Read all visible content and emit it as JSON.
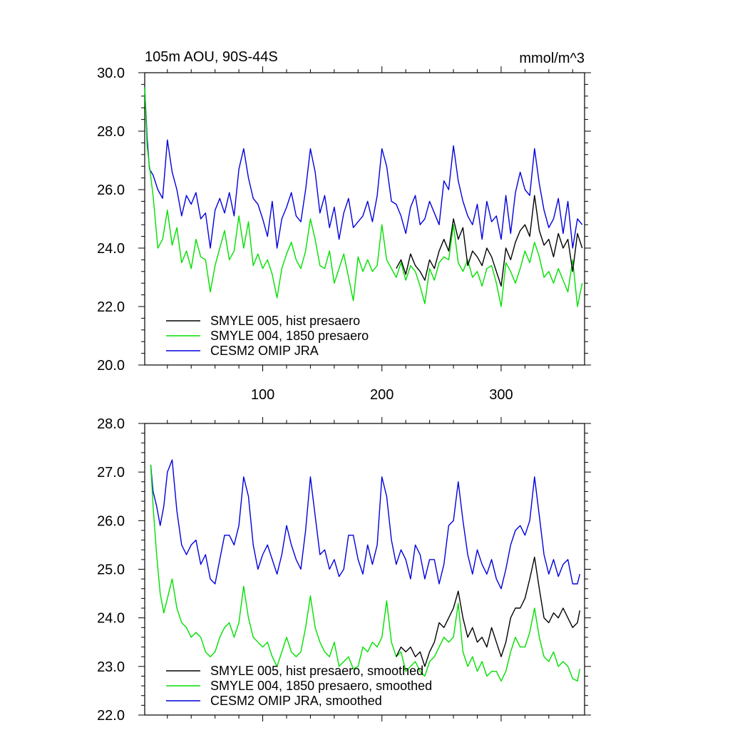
{
  "chart_data": [
    {
      "type": "line",
      "title_left": "105m AOU, 90S-44S",
      "title_right": "mmol/m^3",
      "xlabel": "",
      "ylabel": "",
      "xlim": [
        1,
        370
      ],
      "ylim": [
        20,
        30
      ],
      "x_ticks": [
        100,
        200,
        300
      ],
      "y_ticks": [
        "20.0",
        "22.0",
        "24.0",
        "26.0",
        "28.0",
        "30.0"
      ],
      "legend_position": "bottom-left",
      "legend": [
        {
          "label": "SMYLE 005, hist presaero",
          "color": "#000000"
        },
        {
          "label": "SMYLE 004, 1850 presaero",
          "color": "#00e000"
        },
        {
          "label": "CESM2 OMIP JRA",
          "color": "#0000dd"
        }
      ],
      "series": [
        {
          "name": "CESM2 OMIP JRA",
          "color": "#0000dd",
          "x": [
            1,
            3,
            5,
            8,
            12,
            16,
            20,
            24,
            28,
            32,
            36,
            40,
            44,
            48,
            52,
            56,
            60,
            64,
            68,
            72,
            76,
            80,
            84,
            88,
            92,
            96,
            100,
            104,
            108,
            112,
            116,
            120,
            124,
            128,
            132,
            136,
            140,
            144,
            148,
            152,
            156,
            160,
            164,
            168,
            172,
            176,
            180,
            184,
            188,
            192,
            196,
            200,
            204,
            208,
            212,
            216,
            220,
            224,
            228,
            232,
            236,
            240,
            244,
            248,
            252,
            256,
            260,
            264,
            268,
            272,
            276,
            280,
            284,
            288,
            292,
            296,
            300,
            304,
            308,
            312,
            316,
            320,
            324,
            328,
            332,
            336,
            340,
            344,
            348,
            352,
            356,
            360,
            364,
            368
          ],
          "y": [
            29.5,
            27.8,
            26.7,
            26.5,
            26.0,
            25.7,
            27.7,
            26.6,
            26.0,
            25.1,
            25.8,
            25.5,
            25.9,
            25.0,
            25.2,
            24.0,
            25.3,
            25.7,
            25.2,
            25.9,
            25.1,
            26.7,
            27.4,
            26.4,
            25.7,
            25.5,
            25.0,
            24.4,
            25.6,
            24.0,
            25.0,
            25.4,
            25.9,
            25.1,
            24.9,
            26.0,
            27.4,
            26.6,
            25.2,
            25.8,
            24.7,
            25.4,
            24.3,
            25.2,
            25.7,
            24.7,
            24.9,
            25.1,
            25.6,
            24.9,
            25.8,
            27.4,
            26.8,
            25.6,
            25.5,
            25.1,
            24.5,
            25.4,
            25.8,
            24.8,
            25.0,
            25.6,
            25.2,
            24.8,
            26.3,
            26.0,
            27.5,
            26.3,
            25.6,
            25.1,
            24.8,
            25.5,
            24.3,
            25.6,
            24.9,
            25.1,
            24.3,
            25.8,
            24.5,
            25.9,
            26.6,
            26.0,
            25.8,
            27.4,
            26.2,
            25.3,
            24.7,
            25.0,
            25.7,
            24.5,
            25.6,
            24.0,
            25.0,
            24.8
          ]
        },
        {
          "name": "SMYLE 004, 1850 presaero",
          "color": "#00e000",
          "x": [
            1,
            3,
            5,
            8,
            12,
            16,
            20,
            24,
            28,
            32,
            36,
            40,
            44,
            48,
            52,
            56,
            60,
            64,
            68,
            72,
            76,
            80,
            84,
            88,
            92,
            96,
            100,
            104,
            108,
            112,
            116,
            120,
            124,
            128,
            132,
            136,
            140,
            144,
            148,
            152,
            156,
            160,
            164,
            168,
            172,
            176,
            180,
            184,
            188,
            192,
            196,
            200,
            204,
            208,
            212,
            216,
            220,
            224,
            228,
            232,
            236,
            240,
            244,
            248,
            252,
            256,
            260,
            264,
            268,
            272,
            276,
            280,
            284,
            288,
            292,
            296,
            300,
            304,
            308,
            312,
            316,
            320,
            324,
            328,
            332,
            336,
            340,
            344,
            348,
            352,
            356,
            360,
            364,
            368
          ],
          "y": [
            29.5,
            27.5,
            26.8,
            25.8,
            24.0,
            24.3,
            25.3,
            24.1,
            24.7,
            23.5,
            23.9,
            23.3,
            24.3,
            23.7,
            23.6,
            22.5,
            23.4,
            24.0,
            24.6,
            23.6,
            23.9,
            25.1,
            24.0,
            24.9,
            23.4,
            23.8,
            23.3,
            23.6,
            23.1,
            22.3,
            23.3,
            23.8,
            24.2,
            23.6,
            23.3,
            23.9,
            25.0,
            24.3,
            23.4,
            23.3,
            23.9,
            22.8,
            23.3,
            23.8,
            23.0,
            22.2,
            23.7,
            23.2,
            23.6,
            23.2,
            23.4,
            24.8,
            23.6,
            23.3,
            23.0,
            23.5,
            22.9,
            23.4,
            23.2,
            22.7,
            22.1,
            23.3,
            22.9,
            23.5,
            23.7,
            23.6,
            24.8,
            23.5,
            23.2,
            23.6,
            23.0,
            23.2,
            22.7,
            23.3,
            23.4,
            22.8,
            22.0,
            23.5,
            23.2,
            22.8,
            23.3,
            23.9,
            23.5,
            24.2,
            23.7,
            23.0,
            23.2,
            22.8,
            23.3,
            22.9,
            22.5,
            23.6,
            22.0,
            22.8
          ]
        },
        {
          "name": "SMYLE 005, hist presaero",
          "color": "#000000",
          "x": [
            212,
            216,
            220,
            224,
            228,
            232,
            236,
            240,
            244,
            248,
            252,
            256,
            260,
            264,
            268,
            272,
            276,
            280,
            284,
            288,
            292,
            296,
            300,
            304,
            308,
            312,
            316,
            320,
            324,
            328,
            332,
            336,
            340,
            344,
            348,
            352,
            356,
            360,
            364,
            368
          ],
          "y": [
            23.3,
            23.6,
            23.1,
            23.8,
            23.4,
            23.2,
            22.9,
            23.6,
            23.3,
            23.9,
            24.3,
            23.9,
            25.0,
            24.3,
            24.7,
            23.4,
            23.9,
            23.7,
            23.4,
            24.0,
            23.7,
            23.2,
            22.7,
            24.0,
            23.6,
            24.2,
            24.6,
            24.8,
            24.4,
            25.8,
            24.6,
            24.1,
            24.3,
            23.7,
            24.5,
            24.0,
            24.3,
            23.2,
            24.5,
            24.0
          ]
        }
      ]
    },
    {
      "type": "line",
      "title_left": "",
      "title_right": "",
      "xlabel": "",
      "ylabel": "",
      "xlim": [
        1,
        370
      ],
      "ylim": [
        22,
        28
      ],
      "x_ticks": [
        100,
        200,
        300
      ],
      "y_ticks": [
        "22.0",
        "23.0",
        "24.0",
        "25.0",
        "26.0",
        "27.0",
        "28.0"
      ],
      "legend_position": "bottom-left",
      "legend": [
        {
          "label": "SMYLE 005, hist presaero, smoothed",
          "color": "#000000"
        },
        {
          "label": "SMYLE 004, 1850 presaero, smoothed",
          "color": "#00e000"
        },
        {
          "label": "CESM2 OMIP JRA, smoothed",
          "color": "#0000dd"
        }
      ],
      "series": [
        {
          "name": "CESM2 OMIP JRA, smoothed",
          "color": "#0000dd",
          "x": [
            6,
            8,
            11,
            14,
            17,
            20,
            24,
            28,
            32,
            36,
            40,
            44,
            48,
            52,
            56,
            60,
            64,
            68,
            72,
            76,
            80,
            84,
            88,
            92,
            96,
            100,
            104,
            108,
            112,
            116,
            120,
            124,
            128,
            132,
            136,
            140,
            144,
            148,
            152,
            156,
            160,
            164,
            168,
            172,
            176,
            180,
            184,
            188,
            192,
            196,
            200,
            204,
            208,
            212,
            216,
            220,
            224,
            228,
            232,
            236,
            240,
            244,
            248,
            252,
            256,
            260,
            264,
            268,
            272,
            276,
            280,
            284,
            288,
            292,
            296,
            300,
            304,
            308,
            312,
            316,
            320,
            324,
            328,
            332,
            336,
            340,
            344,
            348,
            352,
            356,
            360,
            364,
            366
          ],
          "y": [
            27.15,
            26.6,
            26.3,
            25.9,
            26.3,
            27.0,
            27.25,
            26.2,
            25.5,
            25.3,
            25.5,
            25.6,
            25.1,
            25.3,
            24.8,
            24.7,
            25.2,
            25.7,
            25.7,
            25.5,
            25.9,
            26.9,
            26.5,
            25.5,
            25.0,
            25.3,
            25.5,
            25.2,
            24.9,
            25.3,
            25.9,
            25.5,
            25.2,
            25.0,
            25.8,
            26.9,
            26.1,
            25.3,
            25.4,
            25.0,
            25.2,
            24.85,
            25.0,
            25.7,
            25.7,
            25.2,
            24.9,
            25.5,
            25.1,
            25.5,
            26.9,
            26.5,
            25.6,
            25.1,
            25.4,
            25.2,
            24.8,
            25.5,
            25.3,
            24.8,
            25.2,
            25.2,
            24.7,
            25.1,
            25.9,
            26.0,
            26.8,
            26.0,
            25.3,
            24.9,
            25.4,
            25.1,
            24.9,
            25.2,
            24.8,
            24.6,
            25.0,
            25.5,
            25.8,
            25.9,
            25.7,
            26.0,
            26.9,
            26.1,
            25.3,
            24.9,
            25.2,
            24.85,
            25.1,
            25.2,
            24.7,
            24.7,
            24.9
          ]
        },
        {
          "name": "SMYLE 004, 1850 presaero, smoothed",
          "color": "#00e000",
          "x": [
            6,
            8,
            11,
            14,
            17,
            20,
            24,
            28,
            32,
            36,
            40,
            44,
            48,
            52,
            56,
            60,
            64,
            68,
            72,
            76,
            80,
            84,
            88,
            92,
            96,
            100,
            104,
            108,
            112,
            116,
            120,
            124,
            128,
            132,
            136,
            140,
            144,
            148,
            152,
            156,
            160,
            164,
            168,
            172,
            176,
            180,
            184,
            188,
            192,
            196,
            200,
            204,
            208,
            212,
            216,
            220,
            224,
            228,
            232,
            236,
            240,
            244,
            248,
            252,
            256,
            260,
            264,
            268,
            272,
            276,
            280,
            284,
            288,
            292,
            296,
            300,
            304,
            308,
            312,
            316,
            320,
            324,
            328,
            332,
            336,
            340,
            344,
            348,
            352,
            356,
            360,
            364,
            366
          ],
          "y": [
            27.15,
            26.3,
            25.3,
            24.5,
            24.1,
            24.4,
            24.8,
            24.2,
            23.9,
            23.8,
            23.6,
            23.7,
            23.6,
            23.3,
            23.2,
            23.3,
            23.6,
            23.8,
            23.9,
            23.6,
            23.9,
            24.65,
            24.0,
            23.6,
            23.5,
            23.4,
            23.5,
            23.2,
            23.0,
            23.3,
            23.6,
            23.3,
            23.2,
            23.3,
            23.8,
            24.45,
            23.8,
            23.5,
            23.3,
            23.2,
            23.5,
            23.0,
            23.1,
            23.2,
            22.95,
            23.0,
            23.4,
            23.3,
            23.5,
            23.4,
            23.6,
            24.35,
            23.5,
            23.2,
            23.3,
            22.9,
            23.0,
            23.1,
            22.9,
            22.8,
            23.1,
            23.2,
            23.4,
            23.6,
            23.5,
            23.6,
            24.3,
            23.3,
            23.0,
            23.2,
            22.9,
            23.1,
            22.8,
            22.9,
            22.9,
            22.7,
            22.9,
            23.3,
            23.6,
            23.4,
            23.4,
            23.7,
            24.2,
            23.6,
            23.2,
            23.1,
            23.3,
            23.0,
            23.1,
            23.0,
            22.75,
            22.7,
            22.95
          ]
        },
        {
          "name": "SMYLE 005, hist presaero, smoothed",
          "color": "#000000",
          "x": [
            212,
            216,
            220,
            224,
            228,
            232,
            236,
            240,
            244,
            248,
            252,
            256,
            260,
            264,
            268,
            272,
            276,
            280,
            284,
            288,
            292,
            296,
            300,
            304,
            308,
            312,
            316,
            320,
            324,
            328,
            332,
            336,
            340,
            344,
            348,
            352,
            356,
            360,
            364,
            366
          ],
          "y": [
            23.2,
            23.4,
            23.3,
            23.4,
            23.2,
            23.3,
            23.0,
            23.3,
            23.5,
            23.9,
            23.8,
            24.0,
            24.2,
            24.55,
            24.0,
            23.6,
            23.8,
            23.5,
            23.6,
            23.4,
            23.8,
            23.5,
            23.2,
            23.5,
            24.0,
            24.2,
            24.2,
            24.4,
            24.8,
            25.25,
            24.6,
            24.0,
            23.9,
            24.1,
            24.0,
            24.2,
            24.0,
            23.8,
            23.9,
            24.15
          ]
        }
      ]
    }
  ]
}
